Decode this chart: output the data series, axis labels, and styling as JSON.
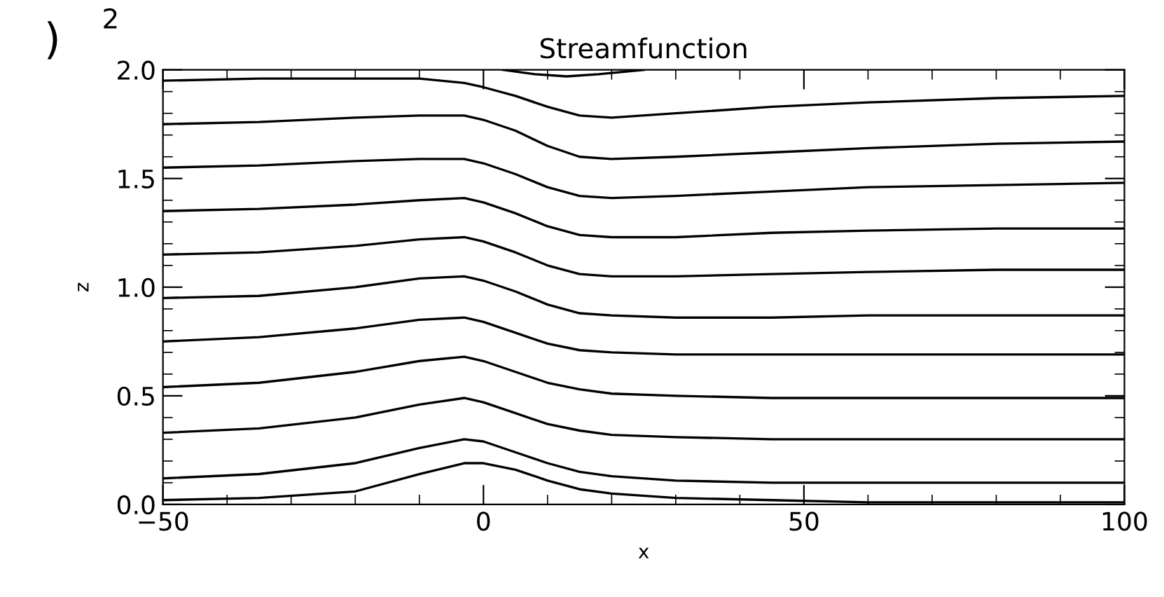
{
  "chart_data": {
    "type": "line",
    "title": "Streamfunction",
    "xlabel": "x",
    "ylabel": "z",
    "annotations": [
      ")",
      "2"
    ],
    "x": [
      -50,
      -35,
      -20,
      -10,
      -3,
      0,
      5,
      10,
      15,
      20,
      30,
      45,
      60,
      80,
      100
    ],
    "series": [
      {
        "color": "#000000",
        "values": [
          1.95,
          1.96,
          1.96,
          1.96,
          1.94,
          1.92,
          1.88,
          1.83,
          1.79,
          1.78,
          1.8,
          1.83,
          1.85,
          1.87,
          1.88
        ]
      },
      {
        "color": "#000000",
        "values": [
          1.75,
          1.76,
          1.78,
          1.79,
          1.79,
          1.77,
          1.72,
          1.65,
          1.6,
          1.59,
          1.6,
          1.62,
          1.64,
          1.66,
          1.67
        ]
      },
      {
        "color": "#000000",
        "values": [
          1.55,
          1.56,
          1.58,
          1.59,
          1.59,
          1.57,
          1.52,
          1.46,
          1.42,
          1.41,
          1.42,
          1.44,
          1.46,
          1.47,
          1.48
        ]
      },
      {
        "color": "#000000",
        "values": [
          1.35,
          1.36,
          1.38,
          1.4,
          1.41,
          1.39,
          1.34,
          1.28,
          1.24,
          1.23,
          1.23,
          1.25,
          1.26,
          1.27,
          1.27
        ]
      },
      {
        "color": "#000000",
        "values": [
          1.15,
          1.16,
          1.19,
          1.22,
          1.23,
          1.21,
          1.16,
          1.1,
          1.06,
          1.05,
          1.05,
          1.06,
          1.07,
          1.08,
          1.08
        ]
      },
      {
        "color": "#000000",
        "values": [
          0.95,
          0.96,
          1.0,
          1.04,
          1.05,
          1.03,
          0.98,
          0.92,
          0.88,
          0.87,
          0.86,
          0.86,
          0.87,
          0.87,
          0.87
        ]
      },
      {
        "color": "#000000",
        "values": [
          0.75,
          0.77,
          0.81,
          0.85,
          0.86,
          0.84,
          0.79,
          0.74,
          0.71,
          0.7,
          0.69,
          0.69,
          0.69,
          0.69,
          0.69
        ]
      },
      {
        "color": "#000000",
        "values": [
          0.54,
          0.56,
          0.61,
          0.66,
          0.68,
          0.66,
          0.61,
          0.56,
          0.53,
          0.51,
          0.5,
          0.49,
          0.49,
          0.49,
          0.49
        ]
      },
      {
        "color": "#000000",
        "values": [
          0.33,
          0.35,
          0.4,
          0.46,
          0.49,
          0.47,
          0.42,
          0.37,
          0.34,
          0.32,
          0.31,
          0.3,
          0.3,
          0.3,
          0.3
        ]
      },
      {
        "color": "#000000",
        "values": [
          0.12,
          0.14,
          0.19,
          0.26,
          0.3,
          0.29,
          0.24,
          0.19,
          0.15,
          0.13,
          0.11,
          0.1,
          0.1,
          0.1,
          0.1
        ]
      },
      {
        "color": "#000000",
        "values": [
          0.02,
          0.03,
          0.06,
          0.14,
          0.19,
          0.19,
          0.16,
          0.11,
          0.07,
          0.05,
          0.03,
          0.02,
          0.01,
          0.01,
          0.01
        ]
      },
      {
        "color": "#000000",
        "x": [
          3,
          8,
          13,
          18,
          25
        ],
        "values": [
          2.0,
          1.98,
          1.97,
          1.98,
          2.0
        ]
      }
    ],
    "xlim": [
      -50,
      100
    ],
    "xticks": [
      -50,
      0,
      50,
      100
    ],
    "ylim": [
      0,
      2
    ],
    "yticks": [
      {
        "value": 0,
        "label": "0.0"
      },
      {
        "value": 0.5,
        "label": "0.5"
      },
      {
        "value": 1,
        "label": "1.0"
      },
      {
        "value": 1.5,
        "label": "1.5"
      },
      {
        "value": 2,
        "label": "2.0"
      }
    ],
    "grid": false,
    "legend": false,
    "marker": "none",
    "line_style": "solid"
  }
}
